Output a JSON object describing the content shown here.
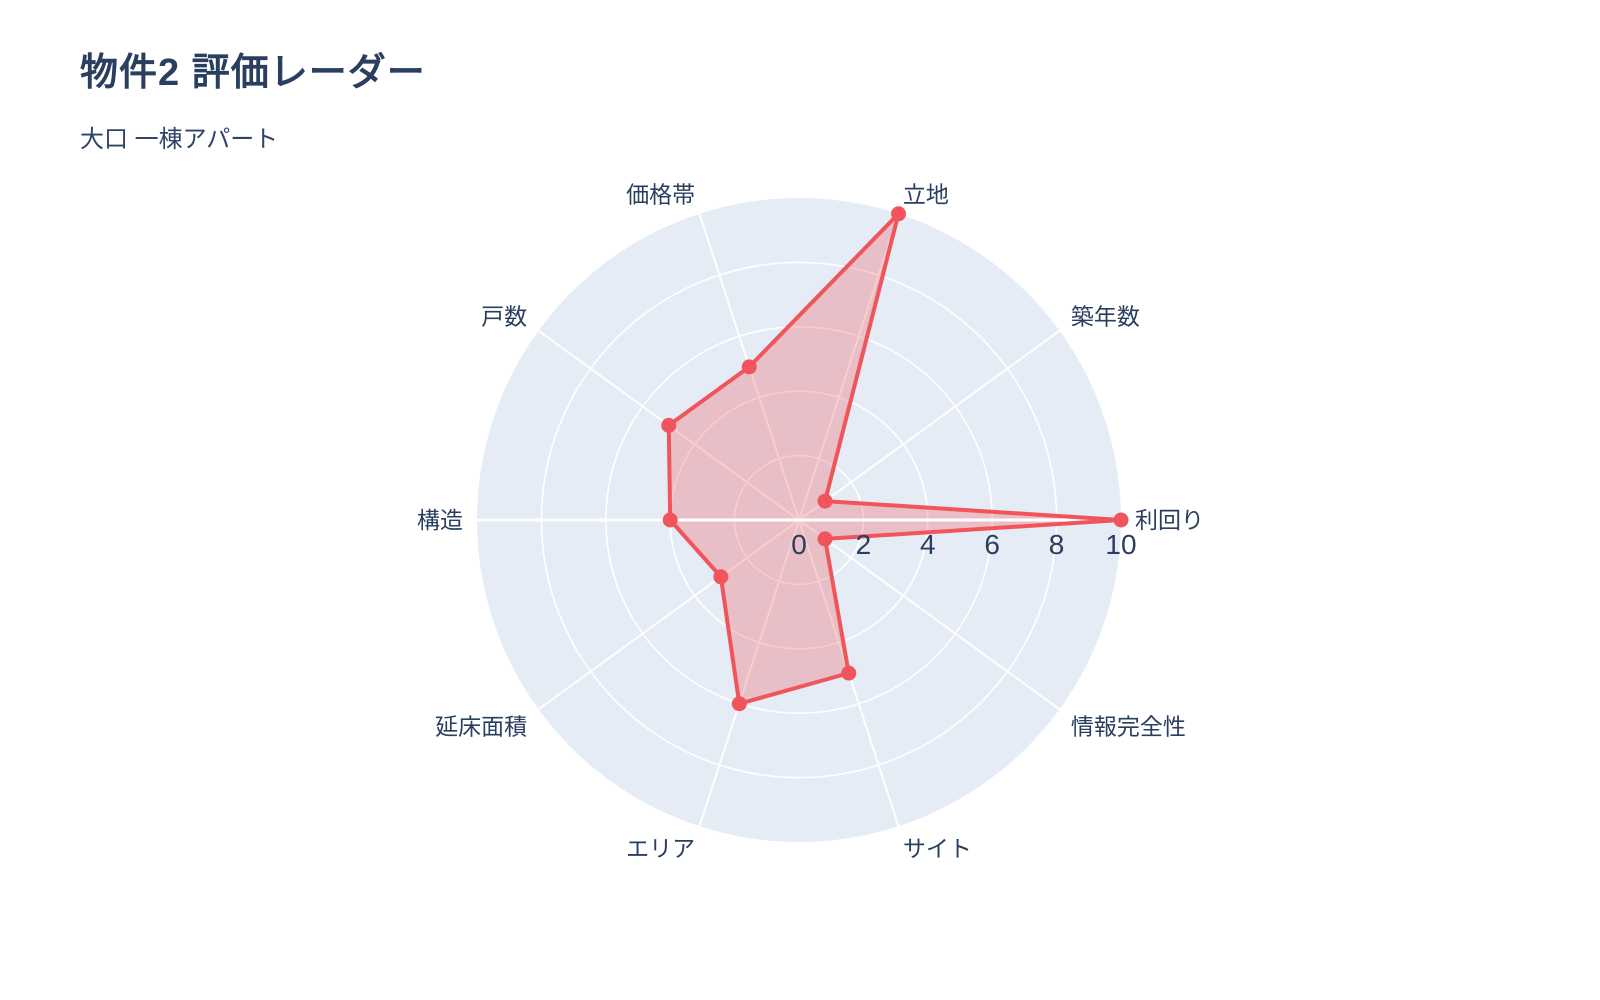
{
  "chart_data": {
    "type": "radar",
    "title": "物件2 評価レーダー",
    "subtitle": "大口 一棟アパート",
    "categories": [
      "利回り",
      "築年数",
      "立地",
      "価格帯",
      "戸数",
      "構造",
      "延床面積",
      "エリア",
      "サイト",
      "情報完全性"
    ],
    "values": [
      10,
      1,
      10,
      5,
      5,
      4,
      3,
      6,
      5,
      1
    ],
    "range": [
      0,
      10
    ],
    "radial_ticks": [
      0,
      2,
      4,
      6,
      8,
      10
    ],
    "rotation_deg": 0,
    "direction": "counterclockwise",
    "grid": true,
    "legend": "none",
    "colors": {
      "line": "#f0555b",
      "fill": "rgba(240,85,91,0.30)",
      "plot_background": "#e5ecf6",
      "grid": "#ffffff",
      "text": "#2a3f5f"
    }
  }
}
